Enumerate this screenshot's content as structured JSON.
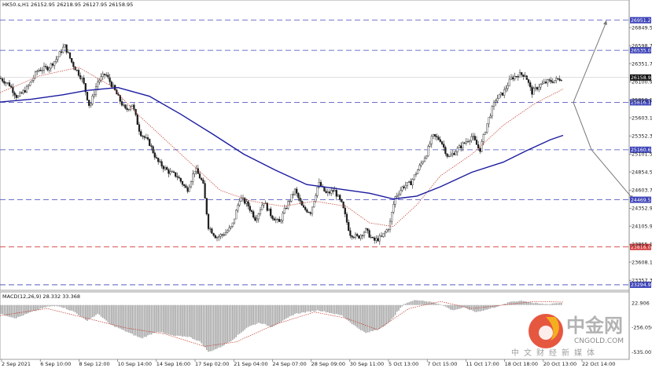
{
  "chart_data": [
    {
      "type": "candlestick",
      "header": "HK50.s,H1  26152.95 26218.95 26127.95 26158.95",
      "y_axis_ticks": [
        "26849.50",
        "26598.70",
        "26351.70",
        "26100.90",
        "25850.10",
        "25603.10",
        "25352.30",
        "25101.50",
        "24854.50",
        "24603.70",
        "24352.90",
        "24105.90",
        "23855.10",
        "23608.10",
        "23357.30"
      ],
      "ylim": [
        23240,
        27100
      ],
      "x_tick_labels": [
        "2 Sep 2021",
        "6 Sep 10:00",
        "8 Sep 12:00",
        "10 Sep 14:00",
        "14 Sep 16:00",
        "17 Sep 02:00",
        "21 Sep 04:00",
        "24 Sep 07:00",
        "28 Sep 09:00",
        "30 Sep 11:00",
        "5 Oct 13:00",
        "7 Oct 15:00",
        "11 Oct 17:00",
        "18 Oct 18:00",
        "20 Oct 13:00",
        "22 Oct 14:00"
      ],
      "current_price": "26158.95",
      "levels": [
        {
          "value": 26951.26,
          "label": "26951.26",
          "color": "#3d44b8"
        },
        {
          "value": 26535.0,
          "label": "26535.00",
          "color": "#3d44b8"
        },
        {
          "value": 25816.19,
          "label": "25816.19",
          "color": "#3d44b8"
        },
        {
          "value": 25160.63,
          "label": "25160.63",
          "color": "#3d44b8"
        },
        {
          "value": 24469.58,
          "label": "24469.58",
          "color": "#3d44b8"
        },
        {
          "value": 23818.0,
          "label": "23818.00",
          "color": "#d23a3a"
        },
        {
          "value": 23294.97,
          "label": "23294.97",
          "color": "#3d44b8"
        }
      ],
      "price_path": [
        [
          0,
          26150
        ],
        [
          12,
          26060
        ],
        [
          22,
          25880
        ],
        [
          35,
          26020
        ],
        [
          48,
          26260
        ],
        [
          62,
          26300
        ],
        [
          72,
          26420
        ],
        [
          82,
          26600
        ],
        [
          92,
          26350
        ],
        [
          105,
          26130
        ],
        [
          114,
          25750
        ],
        [
          124,
          26100
        ],
        [
          134,
          26210
        ],
        [
          145,
          26000
        ],
        [
          152,
          25850
        ],
        [
          160,
          25700
        ],
        [
          168,
          25800
        ],
        [
          178,
          25400
        ],
        [
          190,
          25250
        ],
        [
          200,
          25000
        ],
        [
          215,
          24850
        ],
        [
          225,
          24800
        ],
        [
          238,
          24600
        ],
        [
          248,
          24900
        ],
        [
          258,
          24700
        ],
        [
          265,
          24100
        ],
        [
          275,
          23950
        ],
        [
          285,
          24000
        ],
        [
          295,
          24100
        ],
        [
          305,
          24500
        ],
        [
          315,
          24400
        ],
        [
          325,
          24200
        ],
        [
          335,
          24450
        ],
        [
          345,
          24250
        ],
        [
          355,
          24150
        ],
        [
          365,
          24400
        ],
        [
          375,
          24600
        ],
        [
          385,
          24350
        ],
        [
          395,
          24300
        ],
        [
          405,
          24700
        ],
        [
          415,
          24550
        ],
        [
          425,
          24600
        ],
        [
          435,
          24400
        ],
        [
          445,
          24000
        ],
        [
          455,
          23950
        ],
        [
          465,
          24050
        ],
        [
          475,
          23900
        ],
        [
          485,
          23950
        ],
        [
          495,
          24100
        ],
        [
          502,
          24500
        ],
        [
          512,
          24650
        ],
        [
          522,
          24700
        ],
        [
          532,
          24900
        ],
        [
          542,
          25100
        ],
        [
          550,
          25350
        ],
        [
          560,
          25300
        ],
        [
          570,
          25050
        ],
        [
          580,
          25150
        ],
        [
          590,
          25250
        ],
        [
          600,
          25350
        ],
        [
          610,
          25150
        ],
        [
          620,
          25550
        ],
        [
          630,
          25850
        ],
        [
          640,
          25950
        ],
        [
          650,
          26150
        ],
        [
          660,
          26200
        ],
        [
          668,
          26200
        ],
        [
          676,
          25950
        ],
        [
          686,
          26050
        ],
        [
          696,
          26100
        ],
        [
          706,
          26120
        ],
        [
          716,
          26158.95
        ]
      ],
      "ma_blue": [
        [
          0,
          25820
        ],
        [
          40,
          25860
        ],
        [
          80,
          25920
        ],
        [
          110,
          25980
        ],
        [
          150,
          26020
        ],
        [
          190,
          25900
        ],
        [
          230,
          25650
        ],
        [
          270,
          25380
        ],
        [
          310,
          25100
        ],
        [
          350,
          24880
        ],
        [
          390,
          24680
        ],
        [
          430,
          24620
        ],
        [
          470,
          24560
        ],
        [
          500,
          24480
        ],
        [
          530,
          24520
        ],
        [
          560,
          24650
        ],
        [
          600,
          24850
        ],
        [
          640,
          24990
        ],
        [
          670,
          25150
        ],
        [
          700,
          25300
        ],
        [
          716,
          25360
        ]
      ],
      "ma_red": [
        [
          0,
          25950
        ],
        [
          50,
          26180
        ],
        [
          100,
          26300
        ],
        [
          140,
          26050
        ],
        [
          175,
          25650
        ],
        [
          215,
          25250
        ],
        [
          250,
          24900
        ],
        [
          280,
          24600
        ],
        [
          320,
          24450
        ],
        [
          360,
          24380
        ],
        [
          400,
          24450
        ],
        [
          440,
          24380
        ],
        [
          470,
          24150
        ],
        [
          500,
          24100
        ],
        [
          530,
          24400
        ],
        [
          560,
          24800
        ],
        [
          600,
          25100
        ],
        [
          640,
          25500
        ],
        [
          680,
          25800
        ],
        [
          716,
          26000
        ]
      ],
      "projection": {
        "from_x": 729,
        "from_value": 25816.19,
        "up_to_value": 26951.26,
        "mid_value": 25160.63,
        "down_to_value": 24469.58
      }
    },
    {
      "type": "histogram",
      "title": "MACD(12,26,9) 28.332 33.368",
      "y_axis_ticks": [
        "22.906",
        "-256.050",
        "-535.007"
      ],
      "ylim": [
        -600,
        60
      ],
      "histogram": [
        [
          0,
          -100
        ],
        [
          20,
          -150
        ],
        [
          40,
          -80
        ],
        [
          60,
          -20
        ],
        [
          75,
          -10
        ],
        [
          95,
          -80
        ],
        [
          110,
          -180
        ],
        [
          125,
          -100
        ],
        [
          140,
          -220
        ],
        [
          160,
          -300
        ],
        [
          180,
          -380
        ],
        [
          200,
          -300
        ],
        [
          220,
          -350
        ],
        [
          240,
          -360
        ],
        [
          255,
          -420
        ],
        [
          265,
          -535
        ],
        [
          280,
          -480
        ],
        [
          295,
          -400
        ],
        [
          315,
          -250
        ],
        [
          330,
          -200
        ],
        [
          345,
          -250
        ],
        [
          360,
          -180
        ],
        [
          375,
          -100
        ],
        [
          390,
          -80
        ],
        [
          405,
          -60
        ],
        [
          420,
          -90
        ],
        [
          435,
          -120
        ],
        [
          450,
          -230
        ],
        [
          465,
          -320
        ],
        [
          480,
          -280
        ],
        [
          495,
          -200
        ],
        [
          505,
          -80
        ],
        [
          515,
          20
        ],
        [
          530,
          60
        ],
        [
          545,
          40
        ],
        [
          560,
          10
        ],
        [
          575,
          -60
        ],
        [
          590,
          -30
        ],
        [
          605,
          -80
        ],
        [
          620,
          -50
        ],
        [
          635,
          -10
        ],
        [
          650,
          40
        ],
        [
          665,
          50
        ],
        [
          680,
          20
        ],
        [
          695,
          10
        ],
        [
          705,
          20
        ],
        [
          716,
          28
        ]
      ],
      "signal": [
        [
          0,
          -120
        ],
        [
          60,
          -40
        ],
        [
          110,
          -150
        ],
        [
          160,
          -260
        ],
        [
          210,
          -330
        ],
        [
          260,
          -470
        ],
        [
          300,
          -420
        ],
        [
          350,
          -220
        ],
        [
          400,
          -80
        ],
        [
          440,
          -150
        ],
        [
          480,
          -280
        ],
        [
          520,
          -40
        ],
        [
          560,
          40
        ],
        [
          600,
          -40
        ],
        [
          640,
          0
        ],
        [
          680,
          40
        ],
        [
          716,
          33
        ]
      ]
    }
  ],
  "watermark": {
    "brand": "中金网",
    "domain": "CNGOLD.COM",
    "tagline": "中文财经新媒体"
  },
  "colors": {
    "up": "#1a1a1a",
    "down": "#1a1a1a",
    "ma_blue": "#1b1ba0",
    "ma_red": "#c0392b",
    "level_blue": "#3d44b8",
    "level_red": "#d23a3a",
    "grid_bg": "#ffffff"
  }
}
